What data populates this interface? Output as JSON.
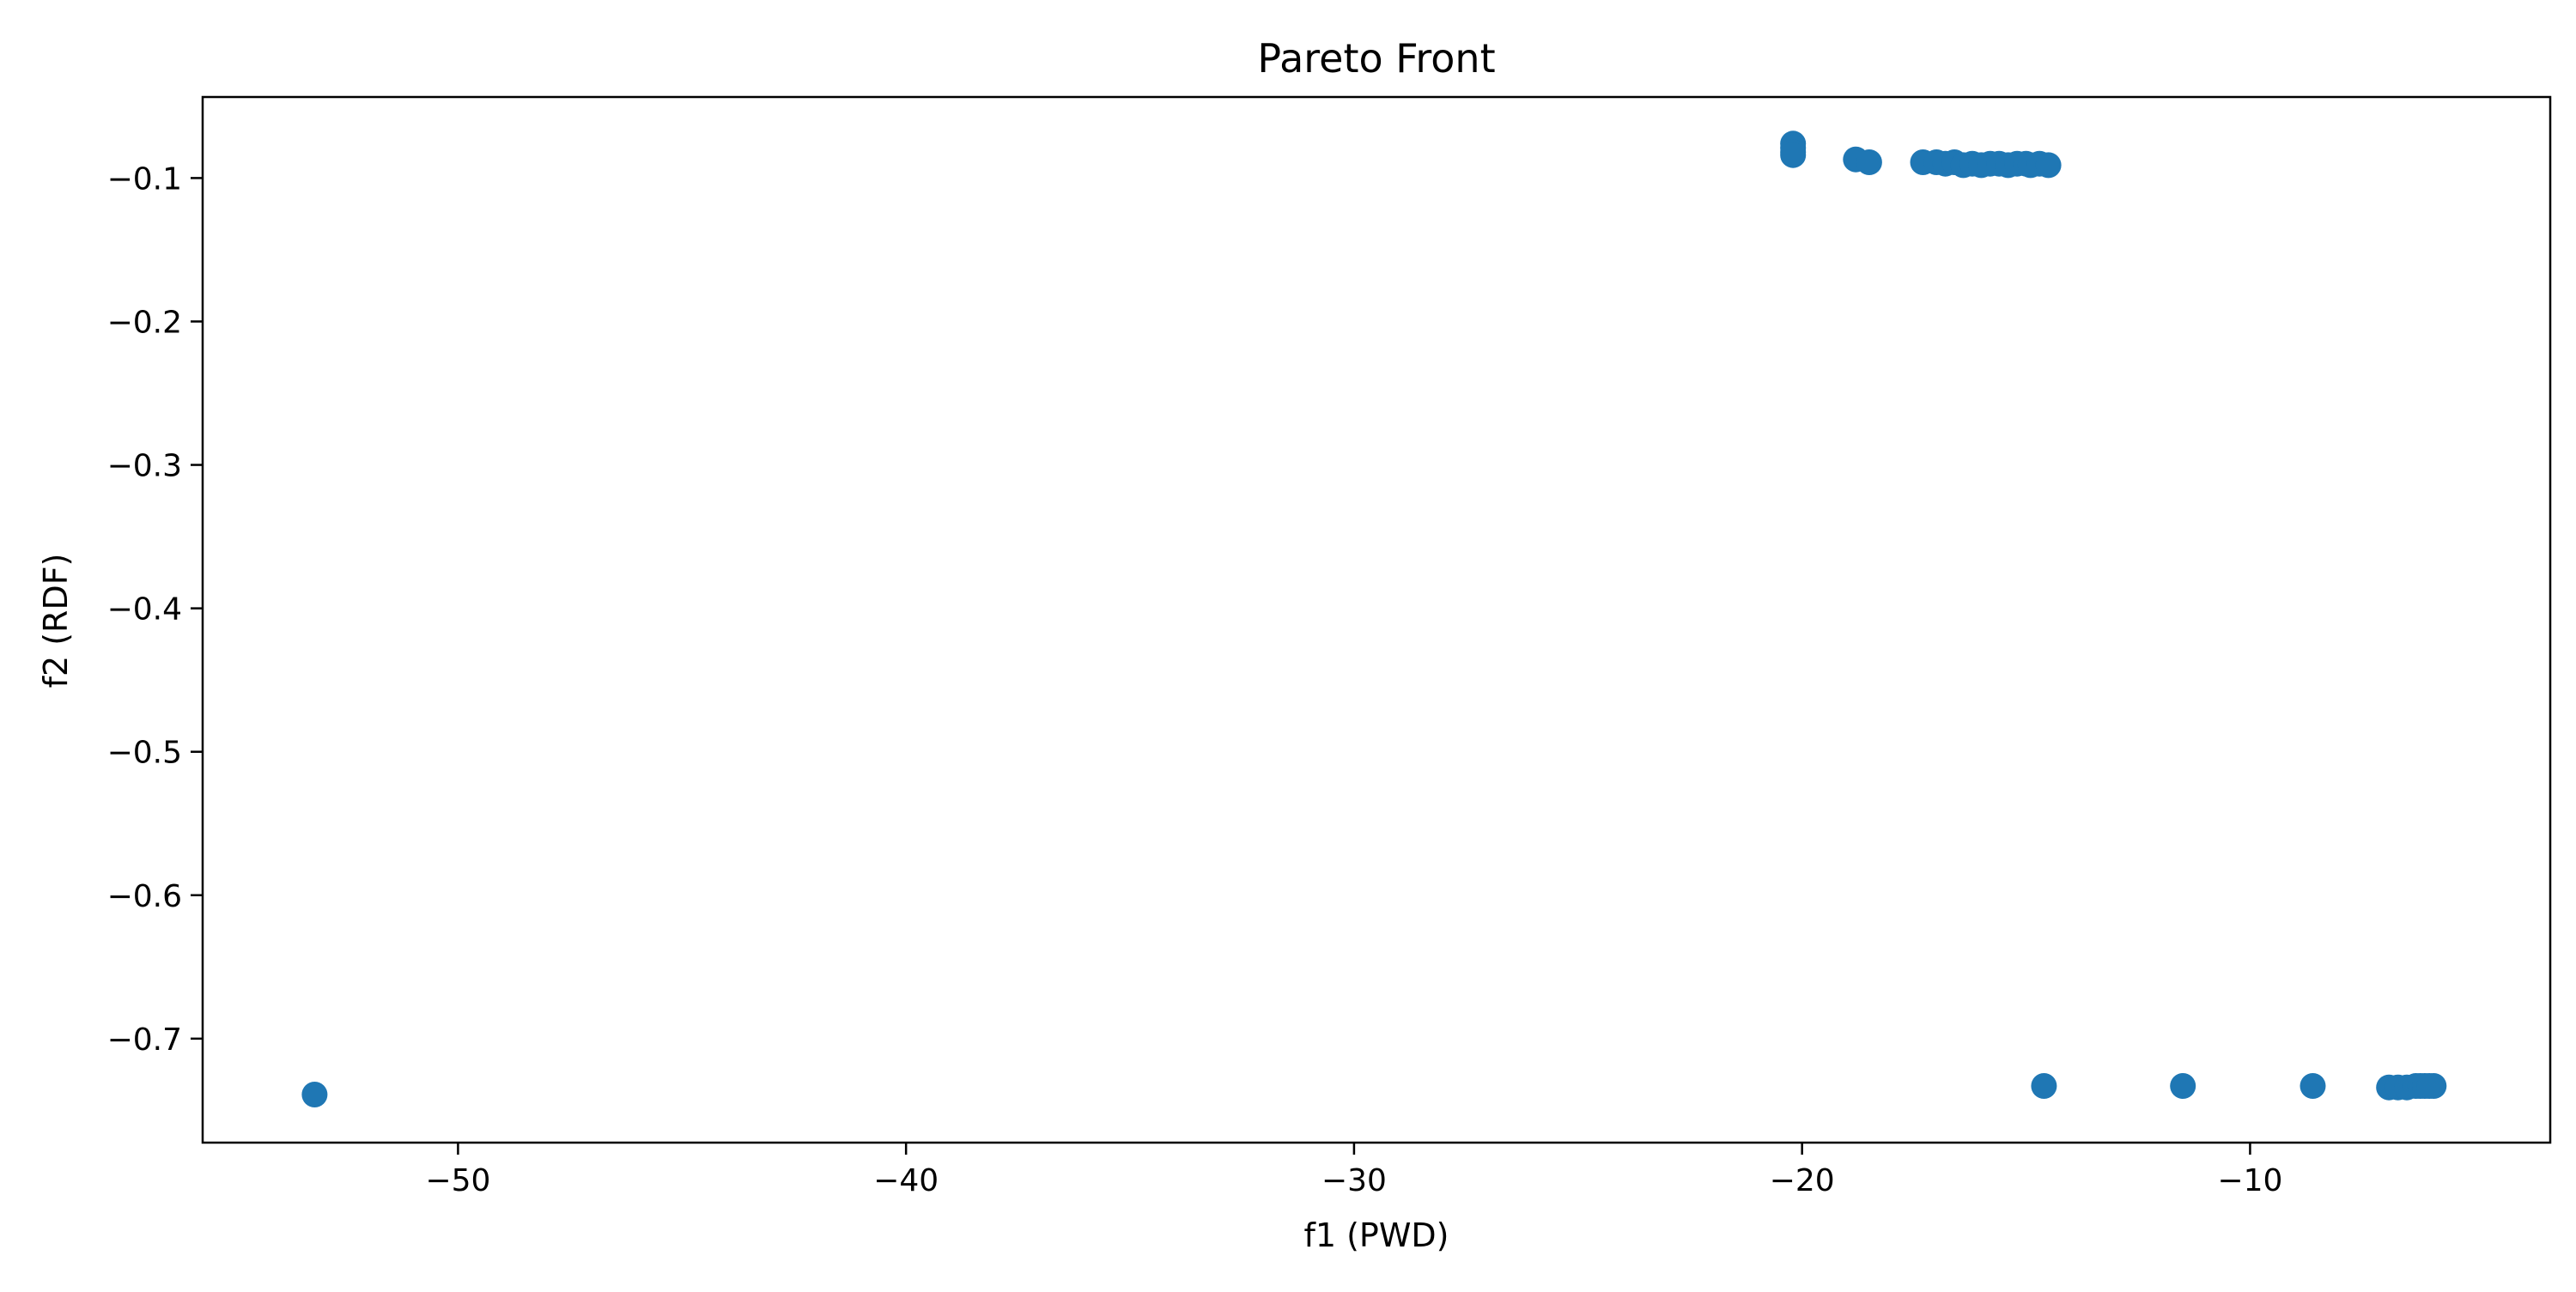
{
  "chart_data": {
    "type": "scatter",
    "title": "Pareto Front",
    "xlabel": "f1 (PWD)",
    "ylabel": "f2 (RDF)",
    "xlim": [
      -55.7,
      -3.3
    ],
    "ylim": [
      -0.7725,
      -0.0435
    ],
    "xticks": [
      -50,
      -40,
      -30,
      -20,
      -10
    ],
    "yticks": [
      -0.1,
      -0.2,
      -0.3,
      -0.4,
      -0.5,
      -0.6,
      -0.7
    ],
    "grid": false,
    "marker_color": "#1f77b4",
    "series": [
      {
        "points": [
          {
            "x": -53.2,
            "y": -0.739
          },
          {
            "x": -20.2,
            "y": -0.076
          },
          {
            "x": -20.2,
            "y": -0.079
          },
          {
            "x": -20.2,
            "y": -0.082
          },
          {
            "x": -20.2,
            "y": -0.084
          },
          {
            "x": -18.8,
            "y": -0.087
          },
          {
            "x": -18.5,
            "y": -0.089
          },
          {
            "x": -17.3,
            "y": -0.089
          },
          {
            "x": -17.0,
            "y": -0.089
          },
          {
            "x": -16.8,
            "y": -0.09
          },
          {
            "x": -16.6,
            "y": -0.089
          },
          {
            "x": -16.4,
            "y": -0.091
          },
          {
            "x": -16.2,
            "y": -0.09
          },
          {
            "x": -16.0,
            "y": -0.091
          },
          {
            "x": -15.8,
            "y": -0.09
          },
          {
            "x": -15.6,
            "y": -0.09
          },
          {
            "x": -15.4,
            "y": -0.091
          },
          {
            "x": -15.2,
            "y": -0.09
          },
          {
            "x": -15.0,
            "y": -0.09
          },
          {
            "x": -14.9,
            "y": -0.091
          },
          {
            "x": -14.7,
            "y": -0.09
          },
          {
            "x": -14.5,
            "y": -0.091
          },
          {
            "x": -14.6,
            "y": -0.733
          },
          {
            "x": -11.5,
            "y": -0.733
          },
          {
            "x": -8.6,
            "y": -0.733
          },
          {
            "x": -6.9,
            "y": -0.734
          },
          {
            "x": -6.7,
            "y": -0.734
          },
          {
            "x": -6.5,
            "y": -0.734
          },
          {
            "x": -6.3,
            "y": -0.733
          },
          {
            "x": -6.2,
            "y": -0.733
          },
          {
            "x": -6.1,
            "y": -0.733
          },
          {
            "x": -6.0,
            "y": -0.733
          },
          {
            "x": -5.9,
            "y": -0.733
          }
        ]
      }
    ]
  }
}
